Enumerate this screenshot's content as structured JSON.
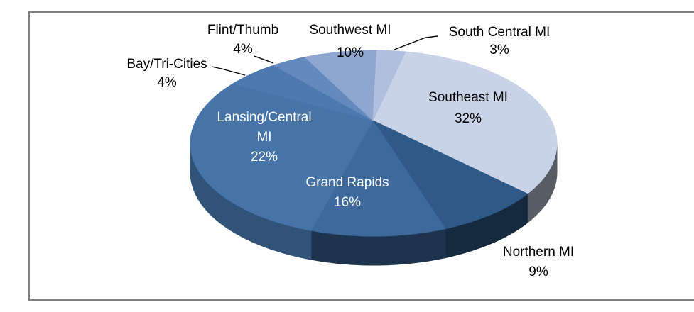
{
  "chart_data": {
    "type": "pie",
    "style": "3d-exploded-none",
    "title": "",
    "unit": "%",
    "legend": "none",
    "background": "#ffffff",
    "border_color": "#808080",
    "categories": [
      "Southeast MI",
      "Northern MI",
      "Grand Rapids",
      "Lansing/Central MI",
      "Bay/Tri-Cities",
      "Flint/Thumb",
      "Southwest MI",
      "South Central MI"
    ],
    "values": [
      32,
      9,
      16,
      22,
      4,
      4,
      10,
      3
    ],
    "colors": [
      "#C9D3E8",
      "#2F5A87",
      "#3D699C",
      "#4674A8",
      "#4C7AB0",
      "#6389BE",
      "#8FA6CF",
      "#B0BFDE"
    ],
    "slices": [
      {
        "label": "Southeast MI",
        "value": 32,
        "pct_text": "32%",
        "color": "#C9D3E8",
        "label_lines": [
          "Southeast MI",
          "32%"
        ],
        "label_placement": "inside",
        "label_ink": "#000000"
      },
      {
        "label": "Northern MI",
        "value": 9,
        "pct_text": "9%",
        "color": "#2F5A87",
        "label_lines": [
          "Northern MI",
          "9%"
        ],
        "label_placement": "outside",
        "label_ink": "#000000"
      },
      {
        "label": "Grand Rapids",
        "value": 16,
        "pct_text": "16%",
        "color": "#3D699C",
        "label_lines": [
          "Grand Rapids",
          "16%"
        ],
        "label_placement": "inside",
        "label_ink": "#ffffff"
      },
      {
        "label": "Lansing/Central MI",
        "value": 22,
        "pct_text": "22%",
        "color": "#4674A8",
        "label_lines": [
          "Lansing/Central",
          "MI",
          "22%"
        ],
        "label_placement": "inside",
        "label_ink": "#ffffff"
      },
      {
        "label": "Bay/Tri-Cities",
        "value": 4,
        "pct_text": "4%",
        "color": "#4C7AB0",
        "label_lines": [
          "Bay/Tri-Cities",
          "4%"
        ],
        "label_placement": "outside-leader",
        "label_ink": "#000000"
      },
      {
        "label": "Flint/Thumb",
        "value": 4,
        "pct_text": "4%",
        "color": "#6389BE",
        "label_lines": [
          "Flint/Thumb",
          "4%"
        ],
        "label_placement": "outside-leader",
        "label_ink": "#000000"
      },
      {
        "label": "Southwest MI",
        "value": 10,
        "pct_text": "10%",
        "color": "#8FA6CF",
        "label_lines": [
          "Southwest MI",
          "10%"
        ],
        "label_placement": "outside",
        "label_ink": "#000000"
      },
      {
        "label": "South Central MI",
        "value": 3,
        "pct_text": "3%",
        "color": "#B0BFDE",
        "label_lines": [
          "South Central MI",
          "3%"
        ],
        "label_placement": "outside-leader",
        "label_ink": "#000000"
      }
    ]
  }
}
